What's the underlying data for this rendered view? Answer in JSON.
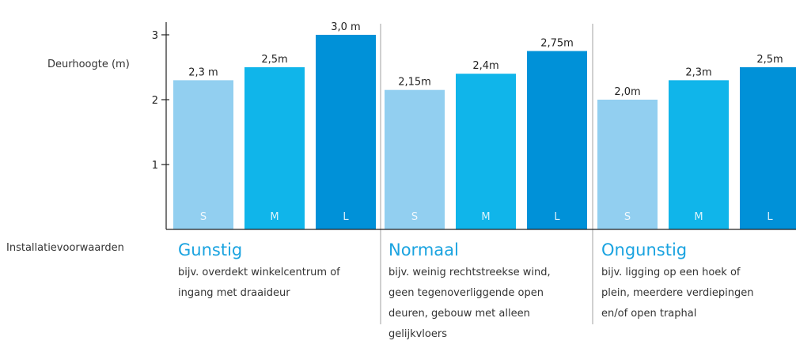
{
  "chart_data": {
    "type": "bar",
    "ylabel": "Deurhoogte (m)",
    "ylim": [
      0,
      3.1
    ],
    "yticks": [
      1,
      2,
      3
    ],
    "grid": false,
    "groups": [
      {
        "name": "Gunstig",
        "description": [
          "bijv. overdekt winkelcentrum of",
          "ingang met draaideur"
        ],
        "bars": [
          {
            "category": "S",
            "value": 2.3,
            "label": "2,3 m",
            "color": "#92cff0"
          },
          {
            "category": "M",
            "value": 2.5,
            "label": "2,5m",
            "color": "#10b5ea"
          },
          {
            "category": "L",
            "value": 3.0,
            "label": "3,0 m",
            "color": "#0091d8"
          }
        ]
      },
      {
        "name": "Normaal",
        "description": [
          "bijv. weinig rechtstreekse wind,",
          "geen tegenoverliggende open",
          "deuren, gebouw met alleen",
          "gelijkvloers"
        ],
        "bars": [
          {
            "category": "S",
            "value": 2.15,
            "label": "2,15m",
            "color": "#92cff0"
          },
          {
            "category": "M",
            "value": 2.4,
            "label": "2,4m",
            "color": "#10b5ea"
          },
          {
            "category": "L",
            "value": 2.75,
            "label": "2,75m",
            "color": "#0091d8"
          }
        ]
      },
      {
        "name": "Ongunstig",
        "description": [
          "bijv. ligging op een hoek of",
          "plein, meerdere verdiepingen",
          "en/of open traphal"
        ],
        "bars": [
          {
            "category": "S",
            "value": 2.0,
            "label": "2,0m",
            "color": "#92cff0"
          },
          {
            "category": "M",
            "value": 2.3,
            "label": "2,3m",
            "color": "#10b5ea"
          },
          {
            "category": "L",
            "value": 2.5,
            "label": "2,5m",
            "color": "#0091d8"
          }
        ]
      }
    ]
  },
  "row_label": "Installatievoorwaarden",
  "colors": {
    "title": "#1aa3e0",
    "axis": "#222222",
    "separator": "#d0d0d0"
  }
}
